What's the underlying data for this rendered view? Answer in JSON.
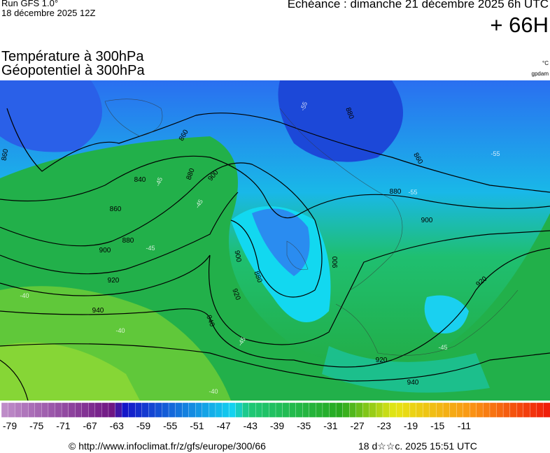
{
  "header": {
    "run": "Run GFS 1.0°",
    "run_date": "18 décembre 2025 12Z",
    "valid": "Echéance : dimanche 21 décembre 2025 6h UTC",
    "lead": "+ 66H",
    "title1": "Température à 300hPa",
    "title2": "Géopotentiel à 300hPa",
    "unit_temp": "°C",
    "unit_geo": "gpdam"
  },
  "geopotential_labels": [
    860,
    860,
    840,
    860,
    880,
    900,
    880,
    900,
    920,
    940,
    940,
    920,
    900,
    880,
    900,
    880,
    900,
    920,
    920,
    940,
    860,
    880
  ],
  "temperature_labels": [
    -55,
    -55,
    -55,
    -45,
    -45,
    -45,
    -40,
    -40,
    -40,
    -45,
    -45
  ],
  "scale_labels": [
    -79,
    -75,
    -71,
    -67,
    -63,
    -59,
    -55,
    -51,
    -47,
    -43,
    -39,
    -35,
    -31,
    -27,
    -23,
    -19,
    -15,
    -11
  ],
  "footer": {
    "url": "© http://www.infoclimat.fr/z/gfs/europe/300/66",
    "timestamp": "18 d☆☆c. 2025 15:51 UTC"
  }
}
